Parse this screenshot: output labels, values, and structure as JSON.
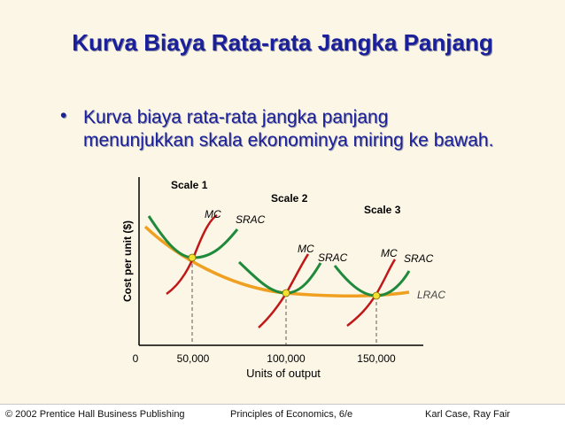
{
  "slide": {
    "title": "Kurva Biaya Rata-rata Jangka Panjang",
    "bullet": "Kurva biaya rata-rata jangka panjang menunjukkan skala ekonominya miring ke bawah."
  },
  "chart_data": {
    "type": "line",
    "title": "",
    "xlabel": "Units of output",
    "ylabel": "Cost per unit ($)",
    "x_ticks": [
      "0",
      "50,000",
      "100,000",
      "150,000"
    ],
    "scales": [
      {
        "name": "Scale 1",
        "mc_label": "MC",
        "srac_label": "SRAC",
        "min_output": 50000
      },
      {
        "name": "Scale 2",
        "mc_label": "MC",
        "srac_label": "SRAC",
        "min_output": 100000
      },
      {
        "name": "Scale 3",
        "mc_label": "MC",
        "srac_label": "SRAC",
        "min_output": 150000
      }
    ],
    "lrac_label": "LRAC",
    "colors": {
      "lrac": "#f0a020",
      "srac": "#1f8a3c",
      "mc": "#c01818",
      "point": "#f4e030"
    }
  },
  "footer": {
    "left": "© 2002 Prentice Hall Business Publishing",
    "center": "Principles of Economics, 6/e",
    "right": "Karl Case, Ray Fair"
  }
}
